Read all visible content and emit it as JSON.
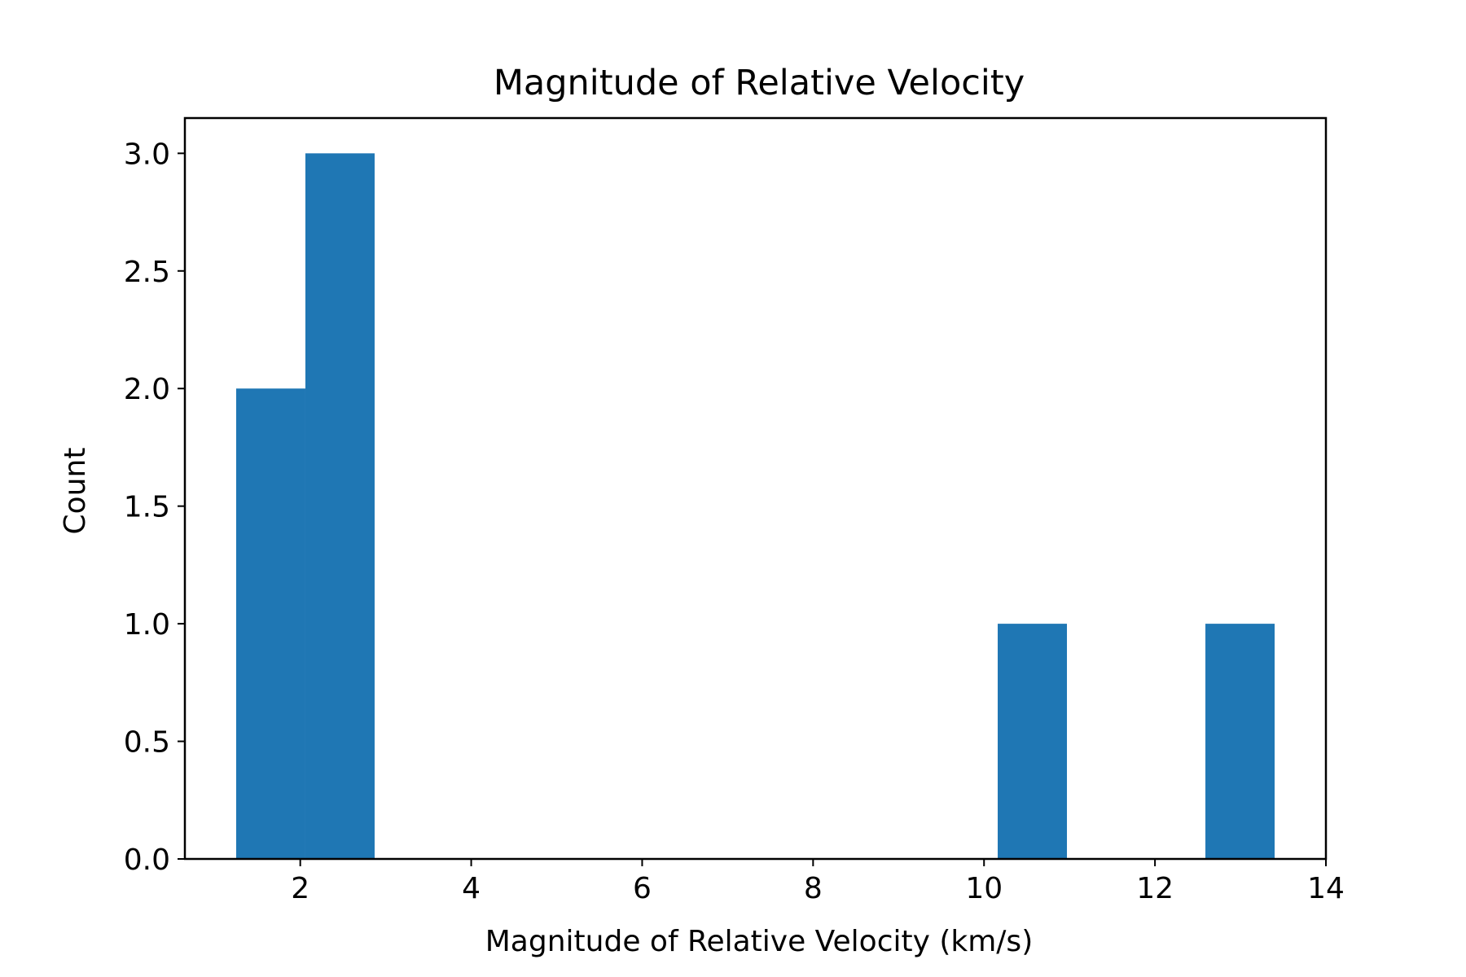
{
  "chart_data": {
    "type": "bar",
    "title": "Magnitude of Relative Velocity",
    "xlabel": "Magnitude of Relative Velocity (km/s)",
    "ylabel": "Count",
    "xlim": [
      0.65,
      14.0
    ],
    "ylim": [
      0,
      3.15
    ],
    "xticks": [
      2,
      4,
      6,
      8,
      10,
      12,
      14
    ],
    "xtick_labels": [
      "2",
      "4",
      "6",
      "8",
      "10",
      "12",
      "14"
    ],
    "yticks": [
      0.0,
      0.5,
      1.0,
      1.5,
      2.0,
      2.5,
      3.0
    ],
    "ytick_labels": [
      "0.0",
      "0.5",
      "1.0",
      "1.5",
      "2.0",
      "2.5",
      "3.0"
    ],
    "bin_edges": [
      1.25,
      2.06,
      2.87,
      3.68,
      4.49,
      5.3,
      6.11,
      6.92,
      7.73,
      8.54,
      9.35,
      10.16,
      10.97,
      11.78,
      12.59,
      13.4
    ],
    "values": [
      2,
      3,
      0,
      0,
      0,
      0,
      0,
      0,
      0,
      0,
      0,
      1,
      0,
      0,
      1
    ],
    "grid": false,
    "bar_color": "#1f77b4"
  }
}
